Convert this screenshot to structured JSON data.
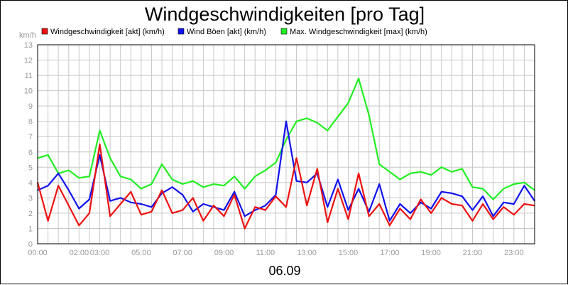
{
  "chart_data": {
    "type": "line",
    "title": "Windgeschwindigkeiten [pro Tag]",
    "ylabel": "km/h",
    "xlabel": "06.09",
    "ylim": [
      0,
      13
    ],
    "yticks": [
      0,
      1,
      2,
      3,
      4,
      5,
      6,
      7,
      8,
      9,
      10,
      11,
      12,
      13
    ],
    "xlim": [
      0,
      24
    ],
    "xticks": [
      {
        "x": 0,
        "label": "00:00"
      },
      {
        "x": 2,
        "label": "02:00"
      },
      {
        "x": 3,
        "label": "03:00"
      },
      {
        "x": 5,
        "label": "05:00"
      },
      {
        "x": 7,
        "label": "07:00"
      },
      {
        "x": 9,
        "label": "09:00"
      },
      {
        "x": 11,
        "label": "11:00"
      },
      {
        "x": 13,
        "label": "13:00"
      },
      {
        "x": 15,
        "label": "15:00"
      },
      {
        "x": 17,
        "label": "17:00"
      },
      {
        "x": 19,
        "label": "19:00"
      },
      {
        "x": 21,
        "label": "21:00"
      },
      {
        "x": 23,
        "label": "23:00"
      }
    ],
    "grid": true,
    "legend_position": "top",
    "series": [
      {
        "name": "Windgeschwindigkeit [akt] (km/h)",
        "color": "#ee1111",
        "x": [
          0,
          0.5,
          1,
          1.5,
          2,
          2.5,
          3,
          3.5,
          4,
          4.5,
          5,
          5.5,
          6,
          6.5,
          7,
          7.5,
          8,
          8.5,
          9,
          9.5,
          10,
          10.5,
          11,
          11.5,
          12,
          12.5,
          13,
          13.5,
          14,
          14.5,
          15,
          15.5,
          16,
          16.5,
          17,
          17.5,
          18,
          18.5,
          19,
          19.5,
          20,
          20.5,
          21,
          21.5,
          22,
          22.5,
          23,
          23.5,
          24
        ],
        "values": [
          4.0,
          1.5,
          3.8,
          2.5,
          1.2,
          2.0,
          6.5,
          1.8,
          2.6,
          3.4,
          1.9,
          2.1,
          3.5,
          2.0,
          2.2,
          3.0,
          1.5,
          2.5,
          1.8,
          3.2,
          1.0,
          2.4,
          2.2,
          3.1,
          2.4,
          5.6,
          2.5,
          4.9,
          1.4,
          3.6,
          1.6,
          4.6,
          1.8,
          2.6,
          1.2,
          2.3,
          1.6,
          2.9,
          2.0,
          3.0,
          2.6,
          2.5,
          1.5,
          2.6,
          1.6,
          2.4,
          1.9,
          2.6,
          2.5
        ]
      },
      {
        "name": "Wind Böen [akt] (km/h)",
        "color": "#1111ee",
        "x": [
          0,
          0.5,
          1,
          1.5,
          2,
          2.5,
          3,
          3.5,
          4,
          4.5,
          5,
          5.5,
          6,
          6.5,
          7,
          7.5,
          8,
          8.5,
          9,
          9.5,
          10,
          10.5,
          11,
          11.5,
          12,
          12.5,
          13,
          13.5,
          14,
          14.5,
          15,
          15.5,
          16,
          16.5,
          17,
          17.5,
          18,
          18.5,
          19,
          19.5,
          20,
          20.5,
          21,
          21.5,
          22,
          22.5,
          23,
          23.5,
          24
        ],
        "values": [
          3.5,
          3.8,
          4.6,
          3.5,
          2.3,
          2.9,
          5.8,
          2.8,
          3.0,
          2.7,
          2.6,
          2.4,
          3.3,
          3.7,
          3.2,
          2.1,
          2.6,
          2.4,
          2.2,
          3.4,
          1.8,
          2.2,
          2.5,
          3.2,
          8.0,
          4.1,
          4.0,
          4.6,
          2.4,
          4.2,
          2.2,
          3.6,
          2.1,
          3.9,
          1.5,
          2.6,
          2.0,
          2.7,
          2.3,
          3.4,
          3.3,
          3.1,
          2.2,
          3.1,
          1.8,
          2.7,
          2.6,
          3.8,
          2.8
        ]
      },
      {
        "name": "Max. Windgeschwindigkeit [max] (km/h)",
        "color": "#22ee22",
        "x": [
          0,
          0.5,
          1,
          1.5,
          2,
          2.5,
          3,
          3.5,
          4,
          4.5,
          5,
          5.5,
          6,
          6.5,
          7,
          7.5,
          8,
          8.5,
          9,
          9.5,
          10,
          10.5,
          11,
          11.5,
          12,
          12.5,
          13,
          13.5,
          14,
          14.5,
          15,
          15.5,
          16,
          16.5,
          17,
          17.5,
          18,
          18.5,
          19,
          19.5,
          20,
          20.5,
          21,
          21.5,
          22,
          22.5,
          23,
          23.5,
          24
        ],
        "values": [
          5.6,
          5.8,
          4.6,
          4.8,
          4.3,
          4.4,
          7.4,
          5.6,
          4.4,
          4.2,
          3.6,
          3.9,
          5.2,
          4.2,
          3.9,
          4.1,
          3.7,
          3.9,
          3.8,
          4.4,
          3.6,
          4.4,
          4.8,
          5.3,
          6.8,
          8.0,
          8.2,
          7.9,
          7.4,
          8.3,
          9.2,
          10.8,
          8.4,
          5.2,
          4.7,
          4.2,
          4.6,
          4.7,
          4.5,
          5.0,
          4.7,
          4.9,
          3.7,
          3.6,
          2.9,
          3.6,
          3.9,
          4.0,
          3.5
        ]
      }
    ]
  }
}
